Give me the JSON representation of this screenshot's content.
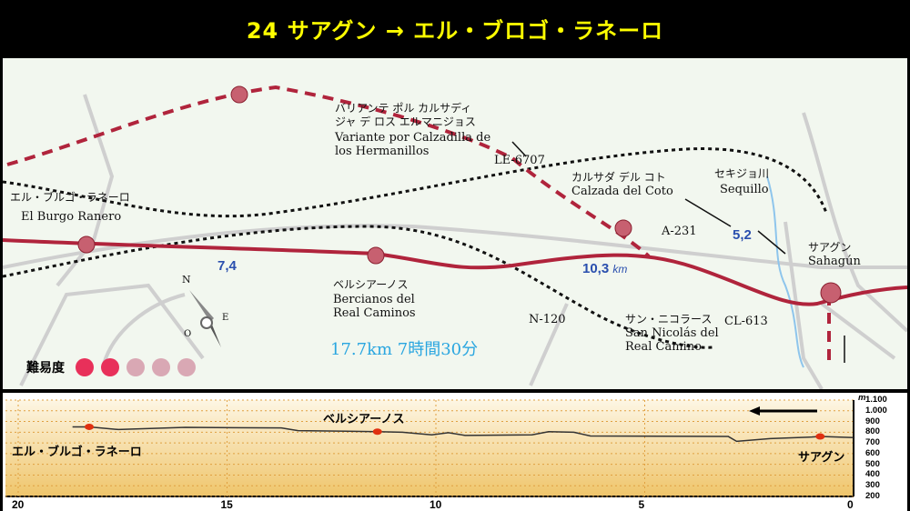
{
  "title": "24 サアグン → エル・ブロゴ・ラネーロ",
  "map": {
    "labels": {
      "variante_jp1": "バリアンテ ポル カルサディ",
      "variante_jp2": "ジャ デ ロス エルマニジョス",
      "variante_es1": "Variante por Calzadilla de",
      "variante_es2": "los Hermanillos",
      "le6707": "LE-6707",
      "calzada_jp": "カルサダ デル コト",
      "calzada_es": "Calzada del Coto",
      "sequillo_jp": "セキジョ川",
      "sequillo_es": "Sequillo",
      "burgo_jp": "エル・ブルゴ・ラネーロ",
      "burgo_es": "El Burgo Ranero",
      "a231": "A-231",
      "sahagun_jp": "サアグン",
      "sahagun_es": "Sahagún",
      "bercianos_jp": "ベルシアーノス",
      "bercianos_es1": "Bercianos del",
      "bercianos_es2": "Real Caminos",
      "n120": "N-120",
      "sannicolas_jp": "サン・ニコラース",
      "sannicolas_es1": "San Nicolás del",
      "sannicolas_es2": "Real Camino",
      "cl613": "CL-613"
    },
    "distances": {
      "d1": "7,4",
      "d2": "10,3",
      "d2_unit": "km",
      "d3": "5,2"
    },
    "summary": "17.7km 7時間30分",
    "compass": {
      "n": "N",
      "e": "E",
      "o": "O"
    },
    "difficulty": {
      "label": "難易度",
      "level": 2,
      "max": 5
    }
  },
  "profile": {
    "labels": {
      "start": "エル・ブルゴ・ラネーロ",
      "mid": "ベルシアーノス",
      "end": "サアグン"
    },
    "unit": "m",
    "yticks": [
      "1.100",
      "1.000",
      "900",
      "800",
      "700",
      "600",
      "500",
      "400",
      "300",
      "200"
    ],
    "xticks": [
      "20",
      "15",
      "10",
      "5",
      "0"
    ]
  },
  "chart_data": {
    "type": "line",
    "xlabel": "km",
    "ylabel": "m",
    "xlim": [
      20,
      0
    ],
    "ylim": [
      200,
      1100
    ],
    "x": [
      18.7,
      18.3,
      17.6,
      16,
      13.7,
      13.3,
      11.4,
      10.8,
      10.1,
      9.7,
      9.3,
      7.7,
      7.3,
      6.7,
      6.3,
      3,
      2.8,
      2,
      1,
      0.8,
      0
    ],
    "y": [
      850,
      850,
      825,
      845,
      840,
      815,
      805,
      800,
      775,
      795,
      770,
      775,
      805,
      800,
      765,
      760,
      715,
      740,
      755,
      760,
      750
    ],
    "markers": [
      {
        "x": 18.3,
        "y": 850
      },
      {
        "x": 11.4,
        "y": 805
      },
      {
        "x": 0.8,
        "y": 760
      }
    ],
    "colors": {
      "line": "#333333",
      "marker": "#e03010"
    }
  }
}
